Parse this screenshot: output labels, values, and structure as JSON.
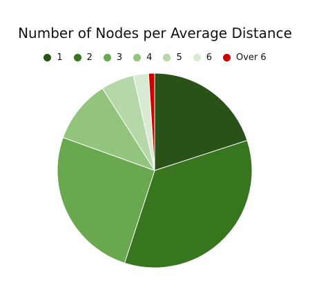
{
  "chart_data": {
    "type": "pie",
    "title": "Number of Nodes per Average Distance",
    "legend_position": "top",
    "slices": [
      {
        "label": "1",
        "value": 20.0,
        "color": "#2a5218"
      },
      {
        "label": "2",
        "value": 35.0,
        "color": "#37761e"
      },
      {
        "label": "3",
        "value": 25.5,
        "color": "#6aa84f"
      },
      {
        "label": "4",
        "value": 10.5,
        "color": "#93c47d"
      },
      {
        "label": "5",
        "value": 5.5,
        "color": "#b6d7a8"
      },
      {
        "label": "6",
        "value": 2.5,
        "color": "#d9ead3"
      },
      {
        "label": "Over 6",
        "value": 1.0,
        "color": "#cc0000"
      }
    ]
  }
}
